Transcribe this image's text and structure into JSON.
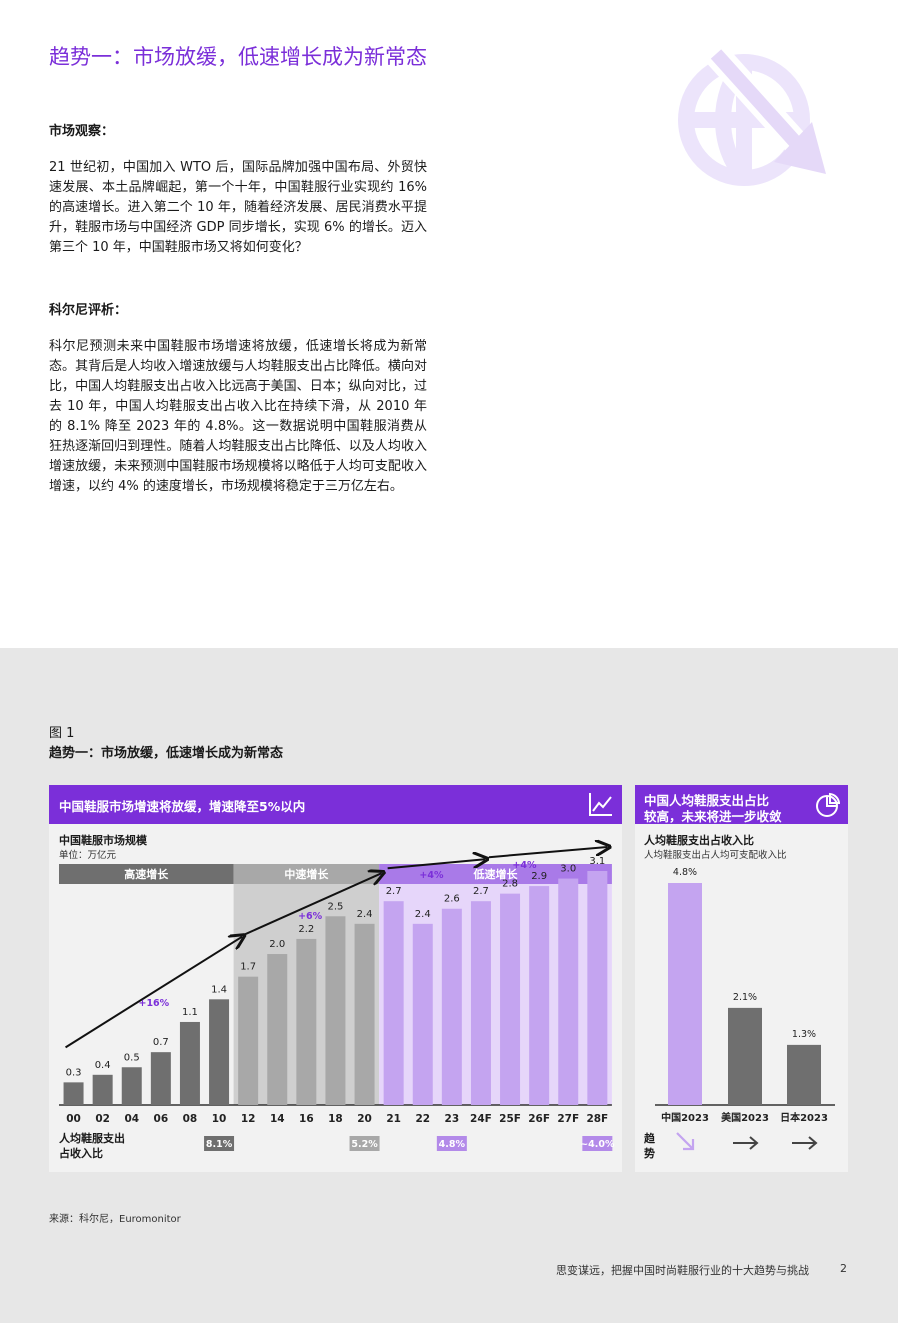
{
  "page": {
    "title": "趋势一：市场放缓，低速增长成为新常态",
    "section1_heading": "市场观察：",
    "section1_body": "21 世纪初，中国加入 WTO 后，国际品牌加强中国布局、外贸快速发展、本土品牌崛起，第一个十年，中国鞋服行业实现约 16% 的高速增长。进入第二个 10 年，随着经济发展、居民消费水平提升，鞋服市场与中国经济 GDP 同步增长，实现 6% 的增长。迈入第三个 10 年，中国鞋服市场又将如何变化？",
    "section2_heading": "科尔尼评析：",
    "section2_body": "科尔尼预测未来中国鞋服市场增速将放缓，低速增长将成为新常态。其背后是人均收入增速放缓与人均鞋服支出占比降低。横向对比，中国人均鞋服支出占收入比远高于美国、日本；纵向对比，过去 10 年，中国人均鞋服支出占收入比在持续下滑，从 2010 年的 8.1% 降至 2023 年的 4.8%。这一数据说明中国鞋服消费从狂热逐渐回归到理性。随着人均鞋服支出占比降低、以及人均收入增速放缓，未来预测中国鞋服市场规模将以略低于人均可支配收入增速，以约 4% 的速度增长，市场规模将稳定于三万亿左右。",
    "figure_number": "图 1",
    "figure_title": "趋势一：市场放缓，低速增长成为新常态",
    "source": "来源：科尔尼，Euromonitor",
    "footer": "思变谋远，把握中国时尚鞋服行业的十大趋势与挑战",
    "page_number": "2"
  },
  "colors": {
    "purple": "#7b2fd9",
    "light_purple": "#c4a4f0",
    "dark_grey": "#6f6f6f",
    "mid_grey": "#a8a8a8",
    "logo_tint": "#ece4fb"
  },
  "left_panel": {
    "banner": "中国鞋服市场增速将放缓，增速降至5%以内",
    "banner_icon": "line-chart-icon",
    "heading": "中国鞋服市场规模",
    "unit": "单位：万亿元",
    "row_label_line1": "人均鞋服支出",
    "row_label_line2": "占收入比"
  },
  "right_panel": {
    "banner_line1": "中国人均鞋服支出占比",
    "banner_line2": "较高，未来将进一步收敛",
    "banner_icon": "pie-chart-icon",
    "heading": "人均鞋服支出占收入比",
    "subheading": "人均鞋服支出占人均可支配收入比",
    "trend_label_1": "趋",
    "trend_label_2": "势"
  },
  "chart_data": [
    {
      "type": "bar",
      "title": "中国鞋服市场规模",
      "ylabel": "单位：万亿元",
      "categories": [
        "00",
        "02",
        "04",
        "06",
        "08",
        "10",
        "12",
        "14",
        "16",
        "18",
        "20",
        "21",
        "22",
        "23",
        "24F",
        "25F",
        "26F",
        "27F",
        "28F"
      ],
      "values": [
        0.3,
        0.4,
        0.5,
        0.7,
        1.1,
        1.4,
        1.7,
        2.0,
        2.2,
        2.5,
        2.4,
        2.7,
        2.4,
        2.6,
        2.7,
        2.8,
        2.9,
        3.0,
        3.1
      ],
      "phases": [
        {
          "label": "高速增长",
          "from": 0,
          "to": 5,
          "growth": "+16%",
          "expense_ratio": "8.1%"
        },
        {
          "label": "中速增长",
          "from": 6,
          "to": 10,
          "growth": "+6%",
          "expense_ratio": "5.2%"
        },
        {
          "label": "低速增长",
          "from": 11,
          "to": 18,
          "growth": [
            "+4%",
            "+4%"
          ],
          "expense_ratio": [
            "4.8%",
            "~4.0%"
          ]
        }
      ],
      "ylim": [
        0,
        3.4
      ]
    },
    {
      "type": "bar",
      "title": "人均鞋服支出占收入比",
      "categories": [
        "中国2023",
        "美国2023",
        "日本2023"
      ],
      "values": [
        4.8,
        2.1,
        1.3
      ],
      "value_labels": [
        "4.8%",
        "2.1%",
        "1.3%"
      ],
      "trend_icons": [
        "arrow-down-right-icon",
        "arrow-right-icon",
        "arrow-right-icon"
      ],
      "ylim": [
        0,
        5.2
      ]
    }
  ]
}
